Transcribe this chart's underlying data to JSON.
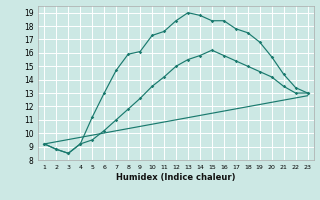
{
  "xlabel": "Humidex (Indice chaleur)",
  "bg_color": "#cce8e4",
  "grid_color": "#ffffff",
  "line_color": "#1a7a6e",
  "xlim": [
    0.5,
    23.5
  ],
  "ylim": [
    8,
    19.5
  ],
  "yticks": [
    8,
    9,
    10,
    11,
    12,
    13,
    14,
    15,
    16,
    17,
    18,
    19
  ],
  "xticks": [
    1,
    2,
    3,
    4,
    5,
    6,
    7,
    8,
    9,
    10,
    11,
    12,
    13,
    14,
    15,
    16,
    17,
    18,
    19,
    20,
    21,
    22,
    23
  ],
  "xtick_labels": [
    "1",
    "2",
    "3",
    "4",
    "5",
    "6",
    "7",
    "8",
    "9",
    "10",
    "11",
    "12",
    "13",
    "14",
    "15",
    "16",
    "17",
    "18",
    "19",
    "20",
    "21",
    "22",
    "23"
  ],
  "line1_x": [
    1,
    2,
    3,
    4,
    5,
    6,
    7,
    8,
    9,
    10,
    11,
    12,
    13,
    14,
    15,
    16,
    17,
    18,
    19,
    20,
    21,
    22,
    23
  ],
  "line1_y": [
    9.2,
    8.8,
    8.5,
    9.2,
    11.2,
    13.0,
    14.7,
    15.9,
    16.1,
    17.3,
    17.6,
    18.4,
    19.0,
    18.8,
    18.4,
    18.4,
    17.8,
    17.5,
    16.8,
    15.7,
    14.4,
    13.4,
    13.0
  ],
  "line2_x": [
    1,
    2,
    3,
    4,
    5,
    6,
    7,
    8,
    9,
    10,
    11,
    12,
    13,
    14,
    15,
    16,
    17,
    18,
    19,
    20,
    21,
    22,
    23
  ],
  "line2_y": [
    9.2,
    8.8,
    8.5,
    9.2,
    9.5,
    10.2,
    11.0,
    11.8,
    12.6,
    13.5,
    14.2,
    15.0,
    15.5,
    15.8,
    16.2,
    15.8,
    15.4,
    15.0,
    14.6,
    14.2,
    13.5,
    13.0,
    13.0
  ],
  "line3_x": [
    1,
    23
  ],
  "line3_y": [
    9.2,
    12.8
  ]
}
